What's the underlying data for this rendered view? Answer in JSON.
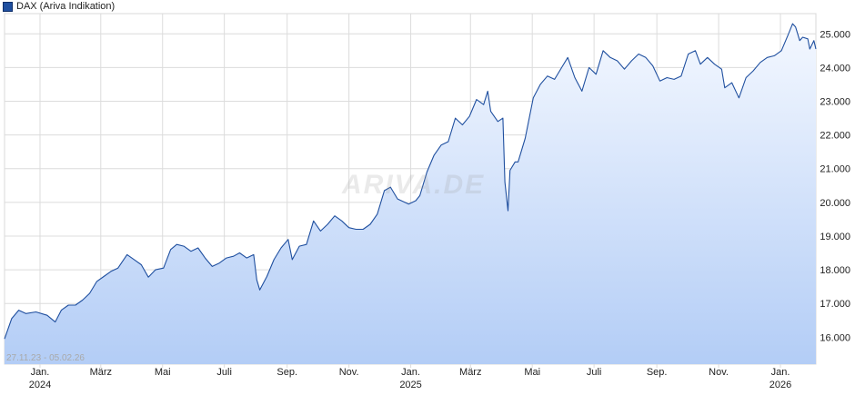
{
  "legend": {
    "label": "DAX (Ariva Indikation)",
    "color": "#1f4f9f"
  },
  "range_label": "27.11.23 - 05.02.26",
  "watermark": "ARIVA.DE",
  "chart_data": {
    "type": "area",
    "title": "",
    "xlabel": "",
    "ylabel": "",
    "ylim": [
      15200,
      25600
    ],
    "yticks": [
      16000,
      17000,
      18000,
      19000,
      20000,
      21000,
      22000,
      23000,
      24000,
      25000
    ],
    "ytick_labels": [
      "16.000",
      "17.000",
      "18.000",
      "19.000",
      "20.000",
      "21.000",
      "22.000",
      "23.000",
      "24.000",
      "25.000"
    ],
    "x_range": [
      "2023-11-27",
      "2026-02-05"
    ],
    "xticks": [
      {
        "date": "2024-01-01",
        "label": "Jan.",
        "sub": "2024"
      },
      {
        "date": "2024-03-01",
        "label": "März",
        "sub": ""
      },
      {
        "date": "2024-05-01",
        "label": "Mai",
        "sub": ""
      },
      {
        "date": "2024-07-01",
        "label": "Juli",
        "sub": ""
      },
      {
        "date": "2024-09-01",
        "label": "Sep.",
        "sub": ""
      },
      {
        "date": "2024-11-01",
        "label": "Nov.",
        "sub": ""
      },
      {
        "date": "2025-01-01",
        "label": "Jan.",
        "sub": "2025"
      },
      {
        "date": "2025-03-01",
        "label": "März",
        "sub": ""
      },
      {
        "date": "2025-05-01",
        "label": "Mai",
        "sub": ""
      },
      {
        "date": "2025-07-01",
        "label": "Juli",
        "sub": ""
      },
      {
        "date": "2025-09-01",
        "label": "Sep.",
        "sub": ""
      },
      {
        "date": "2025-11-01",
        "label": "Nov.",
        "sub": ""
      },
      {
        "date": "2026-01-01",
        "label": "Jan.",
        "sub": "2026"
      }
    ],
    "grid": true,
    "series": [
      {
        "name": "DAX (Ariva Indikation)",
        "points": [
          [
            "2023-11-27",
            15950
          ],
          [
            "2023-12-04",
            16550
          ],
          [
            "2023-12-11",
            16800
          ],
          [
            "2023-12-18",
            16700
          ],
          [
            "2023-12-28",
            16750
          ],
          [
            "2024-01-08",
            16650
          ],
          [
            "2024-01-16",
            16450
          ],
          [
            "2024-01-22",
            16800
          ],
          [
            "2024-01-29",
            16950
          ],
          [
            "2024-02-05",
            16950
          ],
          [
            "2024-02-12",
            17100
          ],
          [
            "2024-02-19",
            17300
          ],
          [
            "2024-02-26",
            17650
          ],
          [
            "2024-03-04",
            17800
          ],
          [
            "2024-03-11",
            17950
          ],
          [
            "2024-03-18",
            18050
          ],
          [
            "2024-03-27",
            18450
          ],
          [
            "2024-04-03",
            18300
          ],
          [
            "2024-04-10",
            18150
          ],
          [
            "2024-04-17",
            17780
          ],
          [
            "2024-04-24",
            18000
          ],
          [
            "2024-05-02",
            18050
          ],
          [
            "2024-05-09",
            18600
          ],
          [
            "2024-05-15",
            18750
          ],
          [
            "2024-05-22",
            18700
          ],
          [
            "2024-05-29",
            18550
          ],
          [
            "2024-06-05",
            18650
          ],
          [
            "2024-06-12",
            18350
          ],
          [
            "2024-06-19",
            18100
          ],
          [
            "2024-06-26",
            18200
          ],
          [
            "2024-07-03",
            18350
          ],
          [
            "2024-07-10",
            18400
          ],
          [
            "2024-07-16",
            18500
          ],
          [
            "2024-07-23",
            18350
          ],
          [
            "2024-07-30",
            18450
          ],
          [
            "2024-08-02",
            17700
          ],
          [
            "2024-08-05",
            17400
          ],
          [
            "2024-08-12",
            17800
          ],
          [
            "2024-08-19",
            18300
          ],
          [
            "2024-08-26",
            18650
          ],
          [
            "2024-09-02",
            18900
          ],
          [
            "2024-09-06",
            18300
          ],
          [
            "2024-09-13",
            18700
          ],
          [
            "2024-09-20",
            18750
          ],
          [
            "2024-09-27",
            19450
          ],
          [
            "2024-10-04",
            19150
          ],
          [
            "2024-10-11",
            19350
          ],
          [
            "2024-10-18",
            19600
          ],
          [
            "2024-10-25",
            19450
          ],
          [
            "2024-11-01",
            19250
          ],
          [
            "2024-11-08",
            19200
          ],
          [
            "2024-11-15",
            19200
          ],
          [
            "2024-11-22",
            19350
          ],
          [
            "2024-11-29",
            19650
          ],
          [
            "2024-12-06",
            20350
          ],
          [
            "2024-12-12",
            20450
          ],
          [
            "2024-12-19",
            20100
          ],
          [
            "2024-12-30",
            19950
          ],
          [
            "2025-01-06",
            20050
          ],
          [
            "2025-01-10",
            20200
          ],
          [
            "2025-01-17",
            20900
          ],
          [
            "2025-01-24",
            21400
          ],
          [
            "2025-01-31",
            21700
          ],
          [
            "2025-02-07",
            21800
          ],
          [
            "2025-02-14",
            22500
          ],
          [
            "2025-02-21",
            22300
          ],
          [
            "2025-02-28",
            22550
          ],
          [
            "2025-03-07",
            23050
          ],
          [
            "2025-03-14",
            22900
          ],
          [
            "2025-03-18",
            23300
          ],
          [
            "2025-03-21",
            22700
          ],
          [
            "2025-03-28",
            22400
          ],
          [
            "2025-04-02",
            22500
          ],
          [
            "2025-04-04",
            20600
          ],
          [
            "2025-04-07",
            19750
          ],
          [
            "2025-04-09",
            20950
          ],
          [
            "2025-04-14",
            21200
          ],
          [
            "2025-04-17",
            21200
          ],
          [
            "2025-04-24",
            21900
          ],
          [
            "2025-05-02",
            23100
          ],
          [
            "2025-05-09",
            23500
          ],
          [
            "2025-05-16",
            23750
          ],
          [
            "2025-05-23",
            23650
          ],
          [
            "2025-05-30",
            24000
          ],
          [
            "2025-06-05",
            24300
          ],
          [
            "2025-06-12",
            23700
          ],
          [
            "2025-06-19",
            23300
          ],
          [
            "2025-06-26",
            24000
          ],
          [
            "2025-07-03",
            23800
          ],
          [
            "2025-07-10",
            24500
          ],
          [
            "2025-07-17",
            24300
          ],
          [
            "2025-07-24",
            24200
          ],
          [
            "2025-07-31",
            23950
          ],
          [
            "2025-08-07",
            24200
          ],
          [
            "2025-08-14",
            24400
          ],
          [
            "2025-08-21",
            24300
          ],
          [
            "2025-08-28",
            24050
          ],
          [
            "2025-09-04",
            23600
          ],
          [
            "2025-09-11",
            23700
          ],
          [
            "2025-09-18",
            23650
          ],
          [
            "2025-09-25",
            23750
          ],
          [
            "2025-10-02",
            24400
          ],
          [
            "2025-10-09",
            24500
          ],
          [
            "2025-10-14",
            24100
          ],
          [
            "2025-10-21",
            24300
          ],
          [
            "2025-10-28",
            24100
          ],
          [
            "2025-11-04",
            23950
          ],
          [
            "2025-11-07",
            23400
          ],
          [
            "2025-11-14",
            23550
          ],
          [
            "2025-11-21",
            23100
          ],
          [
            "2025-11-28",
            23700
          ],
          [
            "2025-12-05",
            23900
          ],
          [
            "2025-12-12",
            24150
          ],
          [
            "2025-12-19",
            24300
          ],
          [
            "2025-12-26",
            24350
          ],
          [
            "2026-01-02",
            24500
          ],
          [
            "2026-01-09",
            25000
          ],
          [
            "2026-01-13",
            25300
          ],
          [
            "2026-01-16",
            25200
          ],
          [
            "2026-01-20",
            24800
          ],
          [
            "2026-01-23",
            24900
          ],
          [
            "2026-01-28",
            24850
          ],
          [
            "2026-01-30",
            24550
          ],
          [
            "2026-02-03",
            24800
          ],
          [
            "2026-02-05",
            24550
          ]
        ]
      }
    ]
  }
}
